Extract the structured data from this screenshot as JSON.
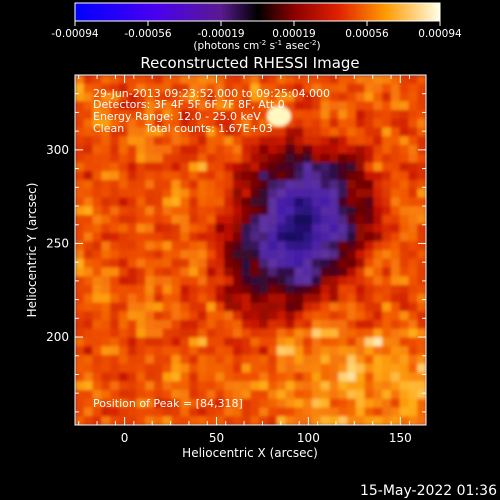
{
  "chart_data": {
    "type": "heatmap",
    "title": "Reconstructed RHESSI Image",
    "xlabel": "Heliocentric X (arcsec)",
    "ylabel": "Heliocentric Y (arcsec)",
    "xlim": [
      -27,
      164
    ],
    "ylim": [
      153,
      340
    ],
    "x_ticks": [
      0,
      50,
      100,
      150
    ],
    "y_ticks": [
      200,
      250,
      300
    ],
    "colorbar": {
      "range": [
        -0.00094,
        0.00094
      ],
      "tick_labels": [
        "-0.00094",
        "-0.00056",
        "-0.00019",
        "0.00019",
        "0.00056",
        "0.00094"
      ],
      "unit_label": "(photons cm",
      "unit_sup1": "-2",
      "unit_mid1": " s",
      "unit_sup2": "-1",
      "unit_mid2": " asec",
      "unit_sup3": "-2",
      "unit_end": ")"
    },
    "annotations": {
      "time_range": "29-Jun-2013 09:23:52.000 to 09:25:04.000",
      "detectors": "Detectors: 3F 4F 5F 6F 7F 8F, Att 0",
      "energy": "Energy Range: 12.0 - 25.0 keV",
      "method": "Clean",
      "counts": "Total counts: 1.67E+03",
      "peak": "Position of Peak = [84,318]"
    },
    "peak_position": [
      84,
      318
    ],
    "grid": false
  },
  "footer": {
    "date": "15-May-2022 01:36"
  }
}
